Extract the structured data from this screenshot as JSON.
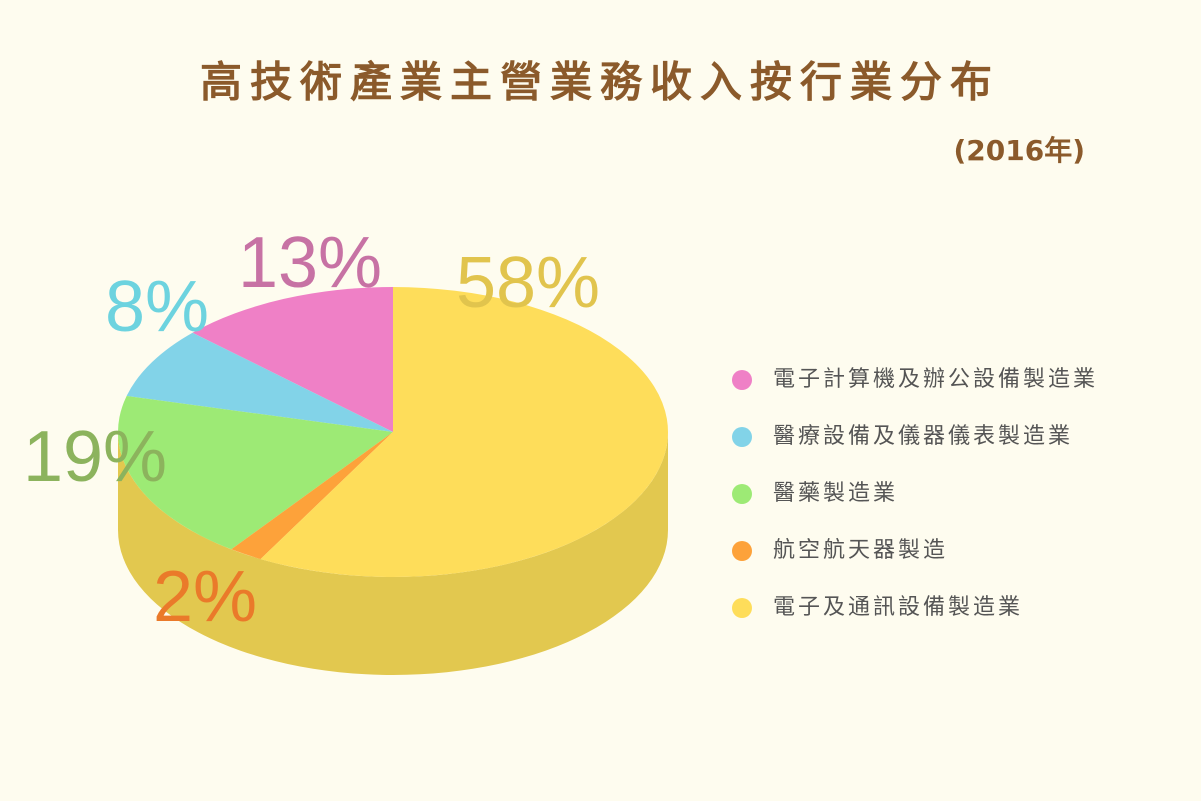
{
  "chart_data": {
    "type": "pie",
    "title": "高技術產業主營業務收入按行業分布",
    "subtitle": "(2016年)",
    "categories": [
      "電子計算機及辦公設備製造業",
      "醫療設備及儀器儀表製造業",
      "醫藥製造業",
      "航空航天器製造",
      "電子及通訊設備製造業"
    ],
    "values": [
      13,
      8,
      19,
      2,
      58
    ],
    "value_labels": [
      "13%",
      "8%",
      "19%",
      "2%",
      "58%"
    ],
    "colors": [
      "#ef80c6",
      "#82d3e8",
      "#9dea75",
      "#fda23a",
      "#fedd5a"
    ],
    "label_colors": [
      "#c772a4",
      "#6dd3df",
      "#8cb35d",
      "#ea7a2a",
      "#e1c44d"
    ],
    "side_color": "#e2c84f"
  }
}
